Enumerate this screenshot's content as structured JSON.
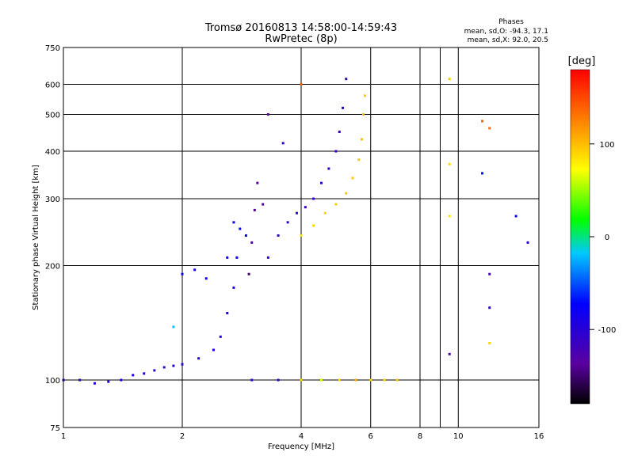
{
  "chart_data": {
    "type": "scatter",
    "title": "Tromsø 20160813 14:58:00-14:59:43",
    "subtitle": "RwPretec (8p)",
    "xlabel": "Frequency [MHz]",
    "ylabel": "Stationary phase Virtual Height [km]",
    "x_scale": "log",
    "y_scale": "log",
    "xlim": [
      1,
      16
    ],
    "ylim": [
      75,
      750
    ],
    "x_ticks": [
      1,
      2,
      4,
      6,
      8,
      10,
      16
    ],
    "y_ticks": [
      75,
      100,
      200,
      300,
      400,
      500,
      600,
      750
    ],
    "x_grid": [
      2,
      4,
      6,
      8,
      9,
      10
    ],
    "y_grid": [
      100,
      200,
      300,
      400,
      500,
      600
    ],
    "grid": true,
    "info": {
      "heading": "Phases",
      "line_o": "mean, sd,O: -94.3, 17.1",
      "line_x": "mean, sd,X:  92.0, 20.5"
    },
    "colorbar": {
      "label": "[deg]",
      "min": -180,
      "max": 180,
      "ticks": [
        100,
        0,
        -100
      ]
    },
    "series": [
      {
        "points": [
          {
            "f": 1.0,
            "h": 100,
            "p": -100
          },
          {
            "f": 1.1,
            "h": 100,
            "p": -95
          },
          {
            "f": 1.2,
            "h": 98,
            "p": -100
          },
          {
            "f": 1.3,
            "h": 99,
            "p": -90
          },
          {
            "f": 1.4,
            "h": 100,
            "p": -100
          },
          {
            "f": 1.5,
            "h": 103,
            "p": -95
          },
          {
            "f": 1.6,
            "h": 104,
            "p": -100
          },
          {
            "f": 1.7,
            "h": 106,
            "p": -100
          },
          {
            "f": 1.8,
            "h": 108,
            "p": -105
          },
          {
            "f": 1.9,
            "h": 109,
            "p": -100
          },
          {
            "f": 2.0,
            "h": 110,
            "p": -100
          },
          {
            "f": 2.2,
            "h": 114,
            "p": -100
          },
          {
            "f": 2.4,
            "h": 120,
            "p": -95
          },
          {
            "f": 2.5,
            "h": 130,
            "p": -100
          },
          {
            "f": 2.6,
            "h": 150,
            "p": -95
          },
          {
            "f": 2.7,
            "h": 175,
            "p": -90
          },
          {
            "f": 2.75,
            "h": 210,
            "p": -80
          },
          {
            "f": 2.8,
            "h": 250,
            "p": -70
          },
          {
            "f": 2.9,
            "h": 240,
            "p": -80
          },
          {
            "f": 2.95,
            "h": 190,
            "p": -150
          },
          {
            "f": 3.0,
            "h": 230,
            "p": -130
          },
          {
            "f": 3.05,
            "h": 280,
            "p": -140
          },
          {
            "f": 3.1,
            "h": 330,
            "p": -130
          },
          {
            "f": 3.2,
            "h": 290,
            "p": -140
          },
          {
            "f": 1.9,
            "h": 138,
            "p": -20
          },
          {
            "f": 2.0,
            "h": 190,
            "p": -80
          },
          {
            "f": 2.15,
            "h": 195,
            "p": -85
          },
          {
            "f": 2.3,
            "h": 185,
            "p": -80
          },
          {
            "f": 2.6,
            "h": 210,
            "p": -80
          },
          {
            "f": 2.7,
            "h": 260,
            "p": -80
          },
          {
            "f": 3.3,
            "h": 210,
            "p": -110
          },
          {
            "f": 3.5,
            "h": 240,
            "p": -110
          },
          {
            "f": 3.7,
            "h": 260,
            "p": -110
          },
          {
            "f": 3.9,
            "h": 275,
            "p": -110
          },
          {
            "f": 4.1,
            "h": 285,
            "p": -110
          },
          {
            "f": 4.3,
            "h": 300,
            "p": -110
          },
          {
            "f": 4.5,
            "h": 330,
            "p": -110
          },
          {
            "f": 4.7,
            "h": 360,
            "p": -110
          },
          {
            "f": 4.9,
            "h": 400,
            "p": -110
          },
          {
            "f": 5.0,
            "h": 450,
            "p": -110
          },
          {
            "f": 5.1,
            "h": 520,
            "p": -105
          },
          {
            "f": 5.2,
            "h": 620,
            "p": -110
          },
          {
            "f": 4.0,
            "h": 240,
            "p": 85
          },
          {
            "f": 4.3,
            "h": 255,
            "p": 90
          },
          {
            "f": 4.6,
            "h": 275,
            "p": 90
          },
          {
            "f": 4.9,
            "h": 290,
            "p": 95
          },
          {
            "f": 5.2,
            "h": 310,
            "p": 95
          },
          {
            "f": 5.4,
            "h": 340,
            "p": 95
          },
          {
            "f": 5.6,
            "h": 380,
            "p": 95
          },
          {
            "f": 5.7,
            "h": 430,
            "p": 100
          },
          {
            "f": 5.75,
            "h": 500,
            "p": 100
          },
          {
            "f": 5.8,
            "h": 560,
            "p": 95
          },
          {
            "f": 3.6,
            "h": 420,
            "p": -110
          },
          {
            "f": 3.3,
            "h": 500,
            "p": -130
          },
          {
            "f": 4.0,
            "h": 600,
            "p": 140
          },
          {
            "f": 3.0,
            "h": 100,
            "p": -100
          },
          {
            "f": 3.5,
            "h": 100,
            "p": -100
          },
          {
            "f": 4.0,
            "h": 100,
            "p": 90
          },
          {
            "f": 4.5,
            "h": 100,
            "p": 60
          },
          {
            "f": 5.0,
            "h": 100,
            "p": 90
          },
          {
            "f": 5.5,
            "h": 100,
            "p": 110
          },
          {
            "f": 6.0,
            "h": 100,
            "p": 90
          },
          {
            "f": 6.5,
            "h": 100,
            "p": 90
          },
          {
            "f": 7.0,
            "h": 100,
            "p": 95
          },
          {
            "f": 9.5,
            "h": 620,
            "p": 95
          },
          {
            "f": 9.5,
            "h": 370,
            "p": 90
          },
          {
            "f": 9.5,
            "h": 270,
            "p": 85
          },
          {
            "f": 9.5,
            "h": 117,
            "p": -130
          },
          {
            "f": 11.5,
            "h": 480,
            "p": 140
          },
          {
            "f": 12.0,
            "h": 460,
            "p": 135
          },
          {
            "f": 11.5,
            "h": 350,
            "p": -70
          },
          {
            "f": 12.0,
            "h": 190,
            "p": -120
          },
          {
            "f": 12.0,
            "h": 155,
            "p": -110
          },
          {
            "f": 12.0,
            "h": 125,
            "p": 90
          },
          {
            "f": 14.0,
            "h": 270,
            "p": -70
          },
          {
            "f": 15.0,
            "h": 230,
            "p": -110
          }
        ]
      }
    ]
  }
}
